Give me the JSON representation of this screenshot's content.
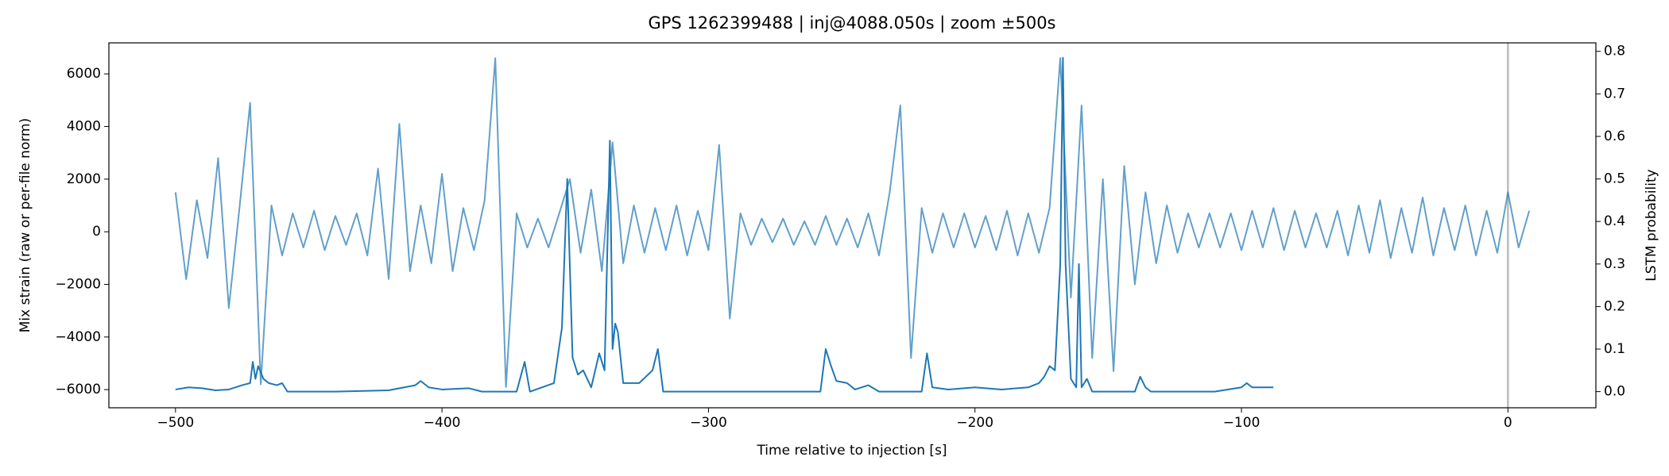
{
  "chart_data": {
    "type": "line",
    "title": "GPS 1262399488 | inj@4088.050s | zoom ±500s",
    "xlabel": "Time relative to injection [s]",
    "ylabel": "Mix strain (raw or per-file norm)",
    "y2label": "LSTM probability",
    "xlim": [
      -525,
      33
    ],
    "ylim": [
      -6690,
      7180
    ],
    "y2lim": [
      -0.038,
      0.82
    ],
    "xticks": [
      {
        "value": -500,
        "label": "−500"
      },
      {
        "value": -400,
        "label": "−400"
      },
      {
        "value": -300,
        "label": "−300"
      },
      {
        "value": -200,
        "label": "−200"
      },
      {
        "value": -100,
        "label": "−100"
      },
      0
    ],
    "yticks": [
      {
        "value": -6000,
        "label": "−6000"
      },
      {
        "value": -4000,
        "label": "−4000"
      },
      {
        "value": -2000,
        "label": "−2000"
      },
      0,
      2000,
      4000,
      6000
    ],
    "y2ticks": [
      {
        "value": 0,
        "label": "0.0"
      },
      0.1,
      0.2,
      0.3,
      0.4,
      0.5,
      0.6,
      0.7,
      0.8
    ],
    "grid": false,
    "vlines": [
      {
        "x": 0,
        "color": "#bbbbbb"
      }
    ],
    "series": [
      {
        "color": "#1f77b4",
        "opacity": 0.7,
        "axis": "y",
        "x": [
          -500,
          -496,
          -492,
          -488,
          -484,
          -480,
          -476,
          -472,
          -468,
          -464,
          -460,
          -456,
          -452,
          -448,
          -444,
          -440,
          -436,
          -432,
          -428,
          -424,
          -420,
          -416,
          -412,
          -408,
          -404,
          -400,
          -396,
          -392,
          -388,
          -384,
          -380,
          -376,
          -372,
          -368,
          -364,
          -360,
          -356,
          -352,
          -348,
          -344,
          -340,
          -336,
          -332,
          -328,
          -324,
          -320,
          -316,
          -312,
          -308,
          -304,
          -300,
          -296,
          -292,
          -288,
          -284,
          -280,
          -276,
          -272,
          -268,
          -264,
          -260,
          -256,
          -252,
          -248,
          -244,
          -240,
          -236,
          -232,
          -228,
          -224,
          -220,
          -216,
          -212,
          -208,
          -204,
          -200,
          -196,
          -192,
          -188,
          -184,
          -180,
          -176,
          -172,
          -168,
          -164,
          -160,
          -156,
          -152,
          -148,
          -144,
          -140,
          -136,
          -132,
          -128,
          -124,
          -120,
          -116,
          -112,
          -108,
          -104,
          -100,
          -96,
          -92,
          -88,
          -84,
          -80,
          -76,
          -72,
          -68,
          -64,
          -60,
          -56,
          -52,
          -48,
          -44,
          -40,
          -36,
          -32,
          -28,
          -24,
          -20,
          -16,
          -12,
          -8,
          -4,
          0,
          4,
          8
        ],
        "values": [
          1500,
          -1800,
          1200,
          -1000,
          2800,
          -2900,
          900,
          4900,
          -5800,
          1000,
          -900,
          700,
          -600,
          800,
          -700,
          600,
          -500,
          700,
          -900,
          2400,
          -1800,
          4100,
          -1500,
          1000,
          -1200,
          2200,
          -1500,
          900,
          -700,
          1200,
          6600,
          -5900,
          700,
          -600,
          500,
          -600,
          700,
          2000,
          -800,
          1600,
          -1500,
          3400,
          -1200,
          1000,
          -800,
          900,
          -700,
          1000,
          -900,
          800,
          -700,
          3300,
          -3300,
          700,
          -500,
          500,
          -400,
          500,
          -500,
          400,
          -500,
          600,
          -500,
          500,
          -600,
          700,
          -900,
          1500,
          4800,
          -4800,
          900,
          -800,
          700,
          -600,
          700,
          -600,
          600,
          -700,
          800,
          -900,
          700,
          -800,
          900,
          6600,
          -2500,
          4800,
          -4800,
          2000,
          -5300,
          2500,
          -2000,
          1500,
          -1200,
          1000,
          -800,
          700,
          -600,
          700,
          -600,
          700,
          -700,
          800,
          -600,
          900,
          -700,
          800,
          -600,
          700,
          -600,
          800,
          -900,
          1000,
          -800,
          1200,
          -1000,
          900,
          -800,
          1300,
          -900,
          900,
          -700,
          1000,
          -900,
          800,
          -800,
          1500,
          -600,
          800
        ]
      },
      {
        "color": "#1f77b4",
        "opacity": 1,
        "axis": "y2",
        "x": [
          -500,
          -495,
          -490,
          -485,
          -480,
          -475,
          -472,
          -471,
          -470,
          -469,
          -467,
          -465,
          -462,
          -460,
          -458,
          -440,
          -420,
          -410,
          -408,
          -405,
          -400,
          -390,
          -385,
          -372,
          -369,
          -367,
          -358,
          -355,
          -353,
          -351,
          -349,
          -347,
          -344,
          -341,
          -339,
          -337,
          -336,
          -335,
          -334,
          -332,
          -326,
          -321,
          -319,
          -317,
          -300,
          -258,
          -256,
          -254,
          -252,
          -248,
          -245,
          -240,
          -236,
          -220,
          -218,
          -216,
          -210,
          -200,
          -190,
          -180,
          -176,
          -174,
          -172,
          -170,
          -168,
          -167,
          -166,
          -164,
          -162,
          -161,
          -160,
          -158,
          -156,
          -140,
          -138,
          -136,
          -134,
          -110,
          -100,
          -98,
          -96,
          -88
        ],
        "values": [
          0.005,
          0.01,
          0.008,
          0.003,
          0.005,
          0.015,
          0.02,
          0.07,
          0.03,
          0.06,
          0.03,
          0.02,
          0.015,
          0.02,
          0,
          0,
          0.003,
          0.015,
          0.025,
          0.01,
          0.005,
          0.008,
          0,
          0,
          0.07,
          0,
          0.02,
          0.15,
          0.5,
          0.08,
          0.04,
          0.05,
          0.01,
          0.09,
          0.05,
          0.59,
          0.1,
          0.16,
          0.14,
          0.02,
          0.02,
          0.05,
          0.1,
          0,
          0,
          0,
          0.1,
          0.06,
          0.025,
          0.02,
          0.005,
          0.015,
          0,
          0,
          0.09,
          0.01,
          0.005,
          0.01,
          0.005,
          0.01,
          0.02,
          0.035,
          0.06,
          0.05,
          0.3,
          0.785,
          0.3,
          0.03,
          0.01,
          0.3,
          0.01,
          0.03,
          0,
          0,
          0.035,
          0.01,
          0,
          0,
          0.01,
          0.02,
          0.01,
          0.01
        ]
      }
    ]
  }
}
